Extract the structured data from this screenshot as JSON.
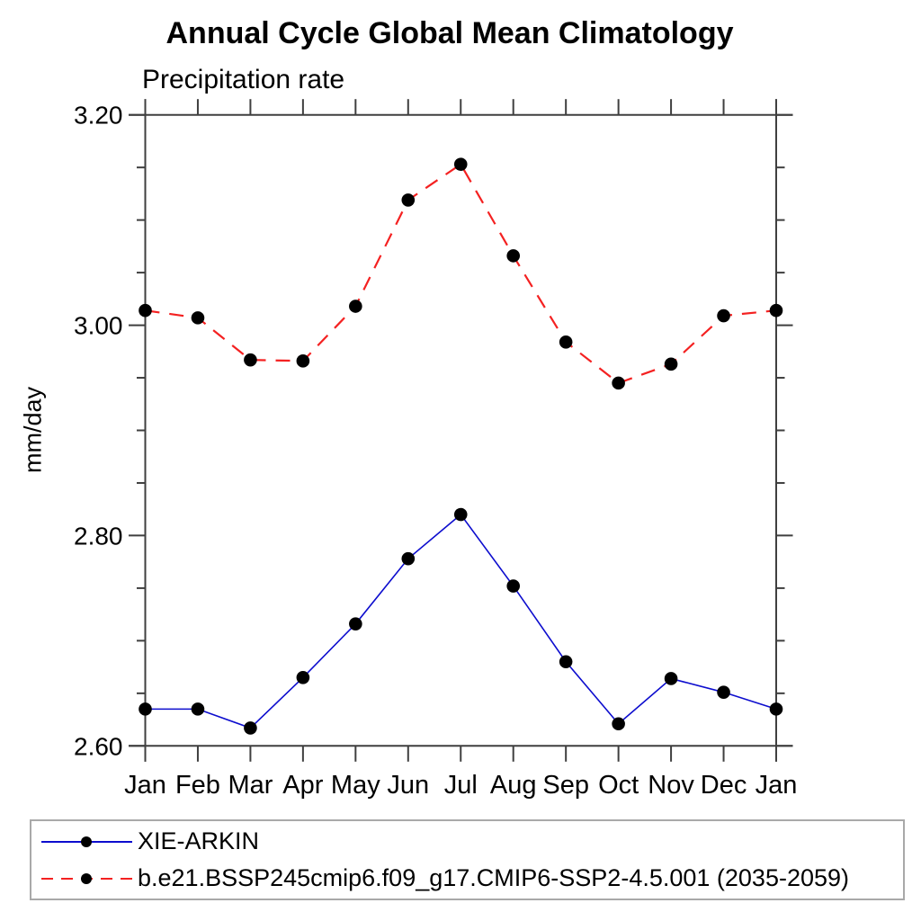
{
  "chart_data": {
    "type": "line",
    "title": "Annual Cycle Global Mean Climatology",
    "subtitle": "Precipitation rate",
    "xlabel": "",
    "ylabel": "mm/day",
    "categories": [
      "Jan",
      "Feb",
      "Mar",
      "Apr",
      "May",
      "Jun",
      "Jul",
      "Aug",
      "Sep",
      "Oct",
      "Nov",
      "Dec",
      "Jan"
    ],
    "ylim": [
      2.6,
      3.2
    ],
    "yticks_major": [
      2.6,
      2.8,
      3.0,
      3.2
    ],
    "ytick_labels": [
      "2.60",
      "2.80",
      "3.00",
      "3.20"
    ],
    "ytick_minor_step": 0.05,
    "grid": "off",
    "legend_position": "bottom-left-box",
    "marker": {
      "shape": "filled-circle",
      "color": "#000000"
    },
    "series": [
      {
        "name": "XIE-ARKIN",
        "color": "#0d0dce",
        "line_style": "solid",
        "values": [
          2.635,
          2.635,
          2.617,
          2.665,
          2.716,
          2.778,
          2.82,
          2.752,
          2.68,
          2.621,
          2.664,
          2.651,
          2.635
        ]
      },
      {
        "name": "b.e21.BSSP245cmip6.f09_g17.CMIP6-SSP2-4.5.001 (2035-2059)",
        "color": "#f42121",
        "line_style": "dashed",
        "values": [
          3.014,
          3.007,
          2.967,
          2.966,
          3.018,
          3.119,
          3.153,
          3.066,
          2.984,
          2.945,
          2.963,
          3.009,
          3.014
        ]
      }
    ]
  },
  "colors": {
    "axis": "#3f3f3f",
    "text": "#000000",
    "legend_border": "#a9a9a9",
    "background": "#ffffff"
  }
}
